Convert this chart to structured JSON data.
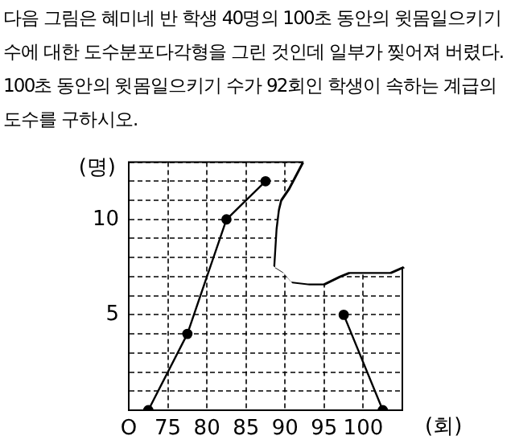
{
  "chart_data": {
    "type": "line",
    "title": "다음 그림은 혜미네 반 학생 40명의 100초 동안의 윗몸일으키기 수에 대한 도수분포다각형을 그린 것인데 일부가 찢어져 버렸다. 100초 동안의 윗몸일으키기 수가 92회인 학생이 속하는 계급의 도수를 구하시오.",
    "xlabel": "(회)",
    "ylabel": "(명)",
    "x": [
      72.5,
      77.5,
      82.5,
      87.5,
      92.5,
      97.5,
      102.5
    ],
    "series": [
      {
        "color": "#000000",
        "values": [
          0,
          4,
          10,
          12,
          null,
          5,
          0
        ]
      }
    ],
    "xlim": [
      70,
      105
    ],
    "ylim": [
      0,
      13
    ],
    "xticks": [
      {
        "value": 70,
        "label": "O"
      },
      75,
      80,
      85,
      90,
      95,
      100,
      {
        "value": 105,
        "label": null
      }
    ],
    "yticks": [
      {
        "value": 0,
        "label": null
      },
      {
        "value": 1,
        "label": null
      },
      {
        "value": 2,
        "label": null
      },
      {
        "value": 3,
        "label": null
      },
      {
        "value": 4,
        "label": null
      },
      5,
      {
        "value": 6,
        "label": null
      },
      {
        "value": 7,
        "label": null
      },
      {
        "value": 8,
        "label": null
      },
      {
        "value": 9,
        "label": null
      },
      10,
      {
        "value": 11,
        "label": null
      },
      {
        "value": 12,
        "label": null
      },
      {
        "value": 13,
        "label": null
      }
    ],
    "grid": true,
    "legend": false,
    "marker": "circle",
    "line_style": "solid"
  }
}
